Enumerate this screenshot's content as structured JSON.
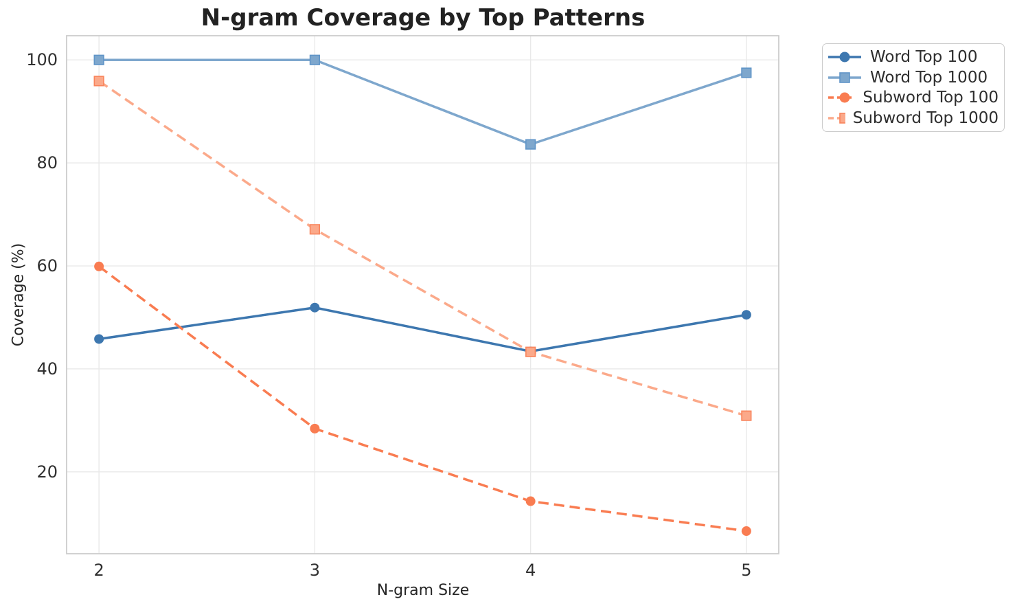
{
  "chart_data": {
    "type": "line",
    "title": "N-gram Coverage by Top Patterns",
    "xlabel": "N-gram Size",
    "ylabel": "Coverage (%)",
    "x": [
      2,
      3,
      4,
      5
    ],
    "xticks": [
      "2",
      "3",
      "4",
      "5"
    ],
    "yticks": [
      "20",
      "40",
      "60",
      "80",
      "100"
    ],
    "xlim": [
      1.85,
      5.15
    ],
    "ylim": [
      4.1,
      104.7
    ],
    "grid": true,
    "legend_position": "outside-upper-right",
    "series": [
      {
        "name": "Word Top 100",
        "values": [
          45.8,
          51.9,
          43.4,
          50.5
        ],
        "color": "#3d77af",
        "marker_edge": "#3d77af",
        "line_style": "solid",
        "marker": "circle"
      },
      {
        "name": "Word Top 1000",
        "values": [
          100.0,
          100.0,
          83.6,
          97.5
        ],
        "color": "#7ea7cd",
        "marker_edge": "#6095c8",
        "line_style": "solid",
        "marker": "square"
      },
      {
        "name": "Subword Top 100",
        "values": [
          59.9,
          28.4,
          14.3,
          8.5
        ],
        "color": "#f97c51",
        "marker_edge": "#f97c51",
        "line_style": "dashed",
        "marker": "circle"
      },
      {
        "name": "Subword Top 1000",
        "values": [
          95.9,
          67.1,
          43.3,
          30.9
        ],
        "color": "#fba98a",
        "marker_edge": "#f9845c",
        "line_style": "dashed",
        "marker": "square"
      }
    ],
    "colors": {
      "background": "#ffffff",
      "grid": "#e9e9e9",
      "spine": "#cccccc",
      "title_text": "#222222",
      "tick_text": "#303030",
      "label_text": "#262626",
      "legend_text": "#2e2e2e",
      "legend_border": "#cccccc"
    }
  }
}
